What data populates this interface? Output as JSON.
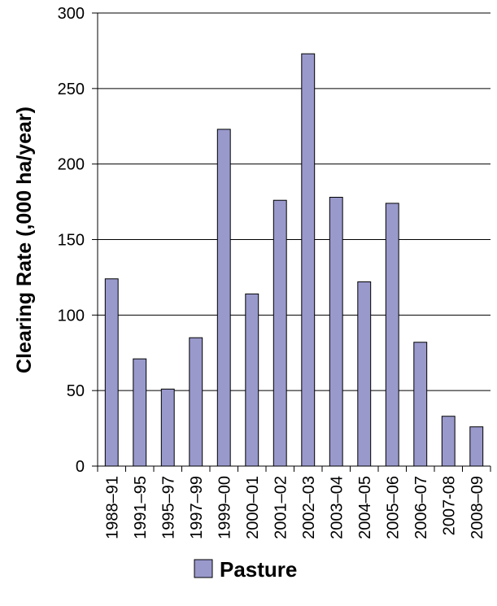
{
  "chart_data": {
    "type": "bar",
    "title": "",
    "xlabel": "",
    "ylabel": "Clearing Rate (,000 ha/year)",
    "ylim": [
      0,
      300
    ],
    "yticks": [
      0,
      50,
      100,
      150,
      200,
      250,
      300
    ],
    "grid": true,
    "legend_position": "bottom-center",
    "categories": [
      "1988–91",
      "1991–95",
      "1995–97",
      "1997–99",
      "1999–00",
      "2000–01",
      "2001–02",
      "2002–03",
      "2003–04",
      "2004–05",
      "2005–06",
      "2006–07",
      "2007-08",
      "2008–09"
    ],
    "series": [
      {
        "name": "Pasture",
        "color": "#9999cc",
        "values": [
          124,
          71,
          51,
          85,
          223,
          114,
          176,
          273,
          178,
          122,
          174,
          82,
          33,
          26
        ]
      }
    ]
  }
}
